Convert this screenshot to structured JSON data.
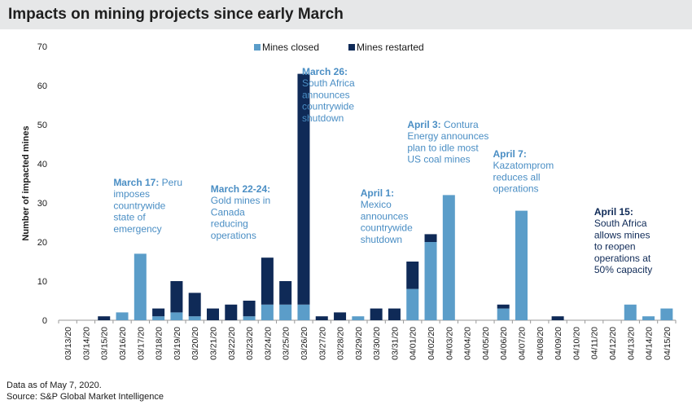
{
  "title": "Impacts on mining projects since early March",
  "footer": {
    "note": "Data as of May 7, 2020.",
    "source": "Source: S&P Global Market Intelligence"
  },
  "colors": {
    "closed": "#5b9dc9",
    "restarted": "#0f2a57",
    "annotation_heading": "#4a8ec4",
    "annotation_text": "#4a8ec4",
    "annotation_dark": "#0f2a57"
  },
  "chart_data": {
    "type": "bar",
    "stacked": true,
    "categories": [
      "03/13/20",
      "03/14/20",
      "03/15/20",
      "03/16/20",
      "03/17/20",
      "03/18/20",
      "03/19/20",
      "03/20/20",
      "03/21/20",
      "03/22/20",
      "03/23/20",
      "03/24/20",
      "03/25/20",
      "03/26/20",
      "03/27/20",
      "03/28/20",
      "03/29/20",
      "03/30/20",
      "03/31/20",
      "04/01/20",
      "04/02/20",
      "04/03/20",
      "04/04/20",
      "04/05/20",
      "04/06/20",
      "04/07/20",
      "04/08/20",
      "04/09/20",
      "04/10/20",
      "04/11/20",
      "04/12/20",
      "04/13/20",
      "04/14/20",
      "04/15/20"
    ],
    "series": [
      {
        "name": "Mines closed",
        "values": [
          0,
          0,
          0,
          2,
          17,
          1,
          2,
          1,
          0,
          0,
          1,
          4,
          4,
          4,
          0,
          0,
          1,
          0,
          0,
          8,
          20,
          32,
          0,
          0,
          3,
          28,
          0,
          0,
          0,
          0,
          0,
          4,
          1,
          3
        ]
      },
      {
        "name": "Mines restarted",
        "values": [
          0,
          0,
          1,
          0,
          0,
          2,
          8,
          6,
          3,
          4,
          4,
          12,
          6,
          59,
          1,
          2,
          0,
          3,
          3,
          7,
          2,
          0,
          0,
          0,
          1,
          0,
          0,
          1,
          0,
          0,
          0,
          0,
          0,
          0
        ]
      }
    ],
    "ylabel": "Number of impacted mines",
    "xlabel": "",
    "ylim": [
      0,
      70
    ],
    "yticks": [
      0,
      10,
      20,
      30,
      40,
      50,
      60,
      70
    ],
    "legend_position": "top-center",
    "grid": false,
    "annotations": [
      {
        "category": "03/17/20",
        "heading": "March 17:",
        "lines": [
          "March 17: Peru",
          "imposes",
          "countrywide",
          "state of",
          "emergency"
        ]
      },
      {
        "category": "03/22/20",
        "heading": "March 22-24:",
        "lines": [
          "March 22-24:",
          "Gold mines in",
          "Canada",
          "reducing",
          "operations"
        ]
      },
      {
        "category": "03/26/20",
        "heading": "March 26:",
        "lines": [
          "March 26:",
          "South Africa",
          "announces",
          "countrywide",
          "shutdown"
        ]
      },
      {
        "category": "04/01/20",
        "heading": "April 1:",
        "lines": [
          "April 1:",
          "Mexico",
          "announces",
          "countrywide",
          "shutdown"
        ]
      },
      {
        "category": "04/03/20",
        "heading": "April 3:",
        "lines": [
          "April 3: Contura",
          "Energy announces",
          "plan to idle most",
          "US coal mines"
        ]
      },
      {
        "category": "04/07/20",
        "heading": "April 7:",
        "lines": [
          "April 7:",
          "Kazatomprom",
          "reduces all",
          "operations"
        ]
      },
      {
        "category": "04/15/20",
        "heading": "April 15:",
        "lines": [
          "April 15:",
          "South Africa",
          "allows mines",
          "to reopen",
          "operations at",
          "50% capacity"
        ]
      }
    ]
  }
}
